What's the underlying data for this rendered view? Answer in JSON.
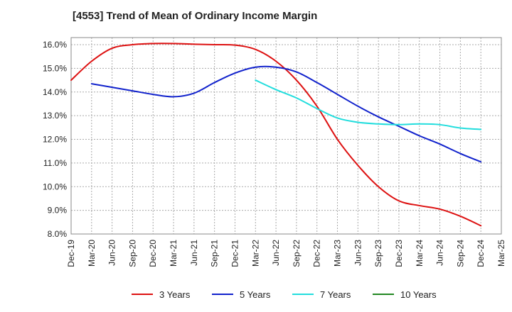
{
  "chart_data": {
    "type": "line",
    "title": "[4553]  Trend of Mean of Ordinary Income Margin",
    "xlabel": "",
    "ylabel": "",
    "x_ticks": [
      "Dec-19",
      "Mar-20",
      "Jun-20",
      "Sep-20",
      "Dec-20",
      "Mar-21",
      "Jun-21",
      "Sep-21",
      "Dec-21",
      "Mar-22",
      "Jun-22",
      "Sep-22",
      "Dec-22",
      "Mar-23",
      "Jun-23",
      "Sep-23",
      "Dec-23",
      "Mar-24",
      "Jun-24",
      "Sep-24",
      "Dec-24",
      "Mar-25"
    ],
    "y_ticks": [
      "8.0%",
      "9.0%",
      "10.0%",
      "11.0%",
      "12.0%",
      "13.0%",
      "14.0%",
      "15.0%",
      "16.0%"
    ],
    "ylim": [
      8.0,
      16.3
    ],
    "grid": true,
    "legend_position": "bottom",
    "series": [
      {
        "name": "3 Years",
        "color": "#dd1111",
        "points": [
          [
            "Dec-19",
            14.5
          ],
          [
            "Mar-20",
            15.3
          ],
          [
            "Jun-20",
            15.85
          ],
          [
            "Sep-20",
            16.0
          ],
          [
            "Dec-20",
            16.05
          ],
          [
            "Mar-21",
            16.05
          ],
          [
            "Jun-21",
            16.02
          ],
          [
            "Sep-21",
            16.0
          ],
          [
            "Dec-21",
            15.98
          ],
          [
            "Mar-22",
            15.8
          ],
          [
            "Jun-22",
            15.3
          ],
          [
            "Sep-22",
            14.5
          ],
          [
            "Dec-22",
            13.4
          ],
          [
            "Mar-23",
            12.0
          ],
          [
            "Jun-23",
            10.9
          ],
          [
            "Sep-23",
            10.0
          ],
          [
            "Dec-23",
            9.4
          ],
          [
            "Mar-24",
            9.2
          ],
          [
            "Jun-24",
            9.05
          ],
          [
            "Sep-24",
            8.75
          ],
          [
            "Dec-24",
            8.35
          ]
        ]
      },
      {
        "name": "5 Years",
        "color": "#1122cc",
        "points": [
          [
            "Mar-20",
            14.35
          ],
          [
            "Jun-20",
            14.2
          ],
          [
            "Sep-20",
            14.05
          ],
          [
            "Dec-20",
            13.9
          ],
          [
            "Mar-21",
            13.8
          ],
          [
            "Jun-21",
            13.95
          ],
          [
            "Sep-21",
            14.4
          ],
          [
            "Dec-21",
            14.8
          ],
          [
            "Mar-22",
            15.05
          ],
          [
            "Jun-22",
            15.05
          ],
          [
            "Sep-22",
            14.85
          ],
          [
            "Dec-22",
            14.4
          ],
          [
            "Mar-23",
            13.9
          ],
          [
            "Jun-23",
            13.4
          ],
          [
            "Sep-23",
            12.95
          ],
          [
            "Dec-23",
            12.55
          ],
          [
            "Mar-24",
            12.15
          ],
          [
            "Jun-24",
            11.8
          ],
          [
            "Sep-24",
            11.4
          ],
          [
            "Dec-24",
            11.05
          ]
        ]
      },
      {
        "name": "7 Years",
        "color": "#22dddd",
        "points": [
          [
            "Mar-22",
            14.5
          ],
          [
            "Jun-22",
            14.1
          ],
          [
            "Sep-22",
            13.75
          ],
          [
            "Dec-22",
            13.3
          ],
          [
            "Mar-23",
            12.9
          ],
          [
            "Jun-23",
            12.72
          ],
          [
            "Sep-23",
            12.65
          ],
          [
            "Dec-23",
            12.62
          ],
          [
            "Mar-24",
            12.65
          ],
          [
            "Jun-24",
            12.62
          ],
          [
            "Sep-24",
            12.48
          ],
          [
            "Dec-24",
            12.42
          ]
        ]
      },
      {
        "name": "10 Years",
        "color": "#228822",
        "points": []
      }
    ]
  }
}
